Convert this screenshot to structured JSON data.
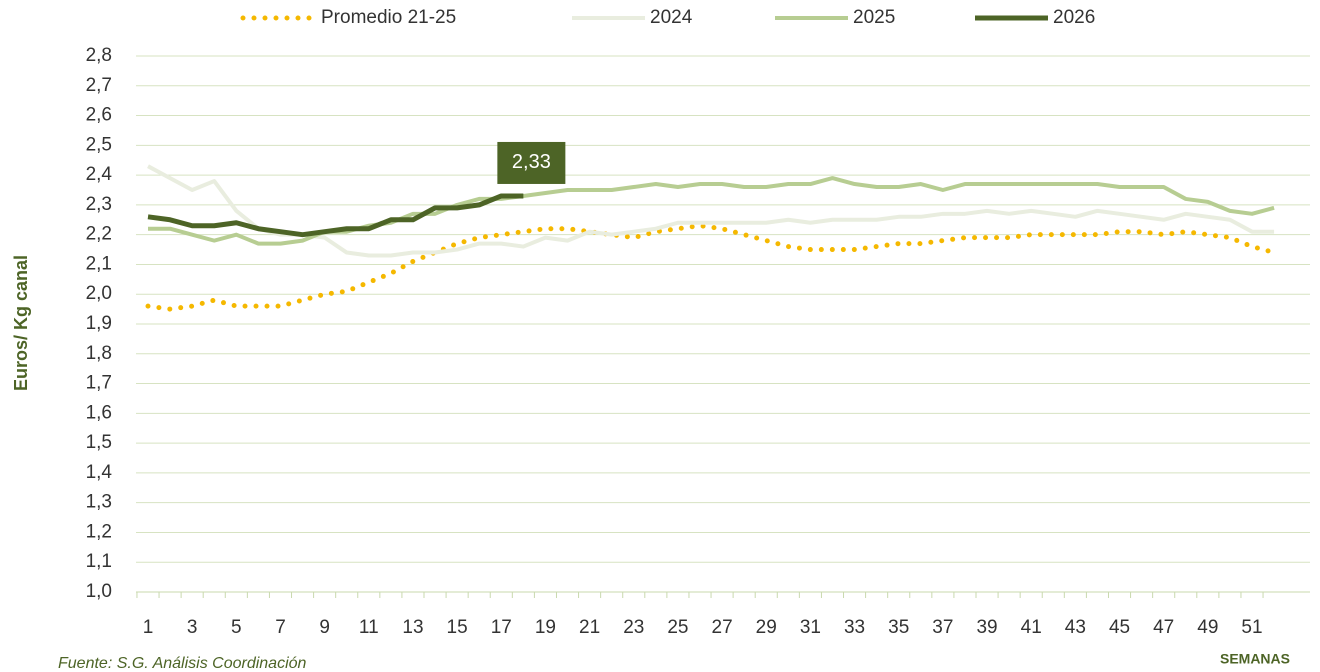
{
  "chart_data": {
    "type": "line",
    "y_label": "Euros/ Kg canal",
    "x_label": "SEMANAS",
    "source": "Fuente: S.G. Análisis Coordinación",
    "categories": [
      "1",
      null,
      "3",
      null,
      "5",
      null,
      "7",
      null,
      "9",
      null,
      "11",
      null,
      "13",
      null,
      "15",
      null,
      "17",
      null,
      "19",
      null,
      "21",
      null,
      "23",
      null,
      "25",
      null,
      "27",
      null,
      "29",
      null,
      "31",
      null,
      "33",
      null,
      "35",
      null,
      "37",
      null,
      "39",
      null,
      "41",
      null,
      "43",
      null,
      "45",
      null,
      "47",
      null,
      "49",
      null,
      "51",
      null
    ],
    "series": [
      {
        "name": "Promedio 21-25",
        "color": "#f5b800",
        "dash": "dotted",
        "values": [
          1.96,
          1.95,
          1.96,
          1.98,
          1.96,
          1.96,
          1.96,
          1.98,
          2.0,
          2.01,
          2.04,
          2.07,
          2.11,
          2.14,
          2.17,
          2.19,
          2.2,
          2.21,
          2.22,
          2.22,
          2.21,
          2.2,
          2.19,
          2.21,
          2.22,
          2.23,
          2.22,
          2.2,
          2.18,
          2.16,
          2.15,
          2.15,
          2.15,
          2.16,
          2.17,
          2.17,
          2.18,
          2.19,
          2.19,
          2.19,
          2.2,
          2.2,
          2.2,
          2.2,
          2.21,
          2.21,
          2.2,
          2.21,
          2.2,
          2.19,
          2.16,
          2.14
        ]
      },
      {
        "name": "2024",
        "color": "#e9eddf",
        "values": [
          2.43,
          2.39,
          2.35,
          2.38,
          2.28,
          2.22,
          2.2,
          2.2,
          2.19,
          2.14,
          2.13,
          2.13,
          2.14,
          2.14,
          2.15,
          2.17,
          2.17,
          2.16,
          2.19,
          2.18,
          2.21,
          2.2,
          2.21,
          2.22,
          2.24,
          2.24,
          2.24,
          2.24,
          2.24,
          2.25,
          2.24,
          2.25,
          2.25,
          2.25,
          2.26,
          2.26,
          2.27,
          2.27,
          2.28,
          2.27,
          2.28,
          2.27,
          2.26,
          2.28,
          2.27,
          2.26,
          2.25,
          2.27,
          2.26,
          2.25,
          2.21,
          2.21
        ]
      },
      {
        "name": "2025",
        "color": "#b7cd92",
        "values": [
          2.22,
          2.22,
          2.2,
          2.18,
          2.2,
          2.17,
          2.17,
          2.18,
          2.21,
          2.21,
          2.23,
          2.24,
          2.27,
          2.27,
          2.3,
          2.32,
          2.32,
          2.33,
          2.34,
          2.35,
          2.35,
          2.35,
          2.36,
          2.37,
          2.36,
          2.37,
          2.37,
          2.36,
          2.36,
          2.37,
          2.37,
          2.39,
          2.37,
          2.36,
          2.36,
          2.37,
          2.35,
          2.37,
          2.37,
          2.37,
          2.37,
          2.37,
          2.37,
          2.37,
          2.36,
          2.36,
          2.36,
          2.32,
          2.31,
          2.28,
          2.27,
          2.29
        ]
      },
      {
        "name": "2026",
        "color": "#4d6426",
        "values": [
          2.26,
          2.25,
          2.23,
          2.23,
          2.24,
          2.22,
          2.21,
          2.2,
          2.21,
          2.22,
          2.22,
          2.25,
          2.25,
          2.29,
          2.29,
          2.3,
          2.33,
          2.33,
          null,
          null,
          null,
          null,
          null,
          null,
          null,
          null,
          null,
          null,
          null,
          null,
          null,
          null,
          null,
          null,
          null,
          null,
          null,
          null,
          null,
          null,
          null,
          null,
          null,
          null,
          null,
          null,
          null,
          null,
          null,
          null,
          null,
          null
        ],
        "value_labels": [
          null,
          null,
          null,
          null,
          null,
          null,
          null,
          null,
          null,
          null,
          null,
          null,
          null,
          null,
          null,
          null,
          null,
          "2,33",
          null,
          null,
          null,
          null,
          null,
          null,
          null,
          null,
          null,
          null,
          null,
          null,
          null,
          null,
          null,
          null,
          null,
          null,
          null,
          null,
          null,
          null,
          null,
          null,
          null,
          null,
          null,
          null,
          null,
          null,
          null,
          null,
          null,
          null
        ]
      }
    ],
    "ylim": [
      1.0,
      2.8
    ],
    "yticks": [
      {
        "value": 1.0,
        "label": "1,0"
      },
      {
        "value": 1.1,
        "label": "1,1"
      },
      {
        "value": 1.2,
        "label": "1,2"
      },
      {
        "value": 1.3,
        "label": "1,3"
      },
      {
        "value": 1.4,
        "label": "1,4"
      },
      {
        "value": 1.5,
        "label": "1,5"
      },
      {
        "value": 1.6,
        "label": "1,6"
      },
      {
        "value": 1.7,
        "label": "1,7"
      },
      {
        "value": 1.8,
        "label": "1,8"
      },
      {
        "value": 1.9,
        "label": "1,9"
      },
      {
        "value": 2.0,
        "label": "2,0"
      },
      {
        "value": 2.1,
        "label": "2,1"
      },
      {
        "value": 2.2,
        "label": "2,2"
      },
      {
        "value": 2.3,
        "label": "2,3"
      },
      {
        "value": 2.4,
        "label": "2,4"
      },
      {
        "value": 2.5,
        "label": "2,5"
      },
      {
        "value": 2.6,
        "label": "2,6"
      },
      {
        "value": 2.7,
        "label": "2,7"
      },
      {
        "value": 2.8,
        "label": "2,8"
      }
    ],
    "grid": true,
    "legend": "top"
  }
}
